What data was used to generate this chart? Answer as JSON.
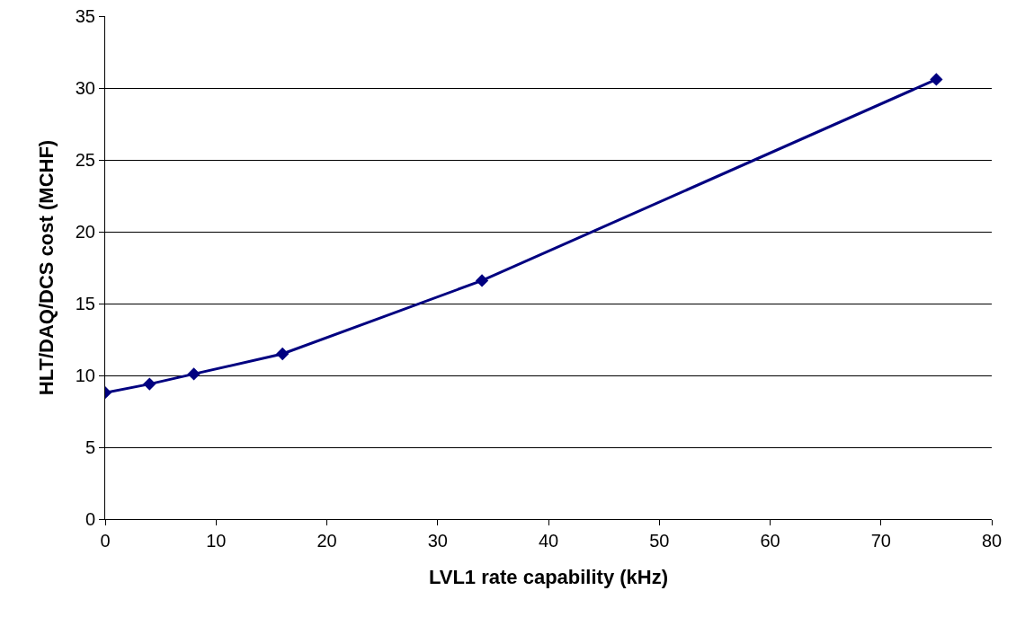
{
  "chart_data": {
    "type": "line",
    "xlabel": "LVL1 rate capability (kHz)",
    "ylabel": "HLT/DAQ/DCS cost (MCHF)",
    "x": [
      0,
      4,
      8,
      16,
      34,
      75
    ],
    "series": [
      {
        "color": "#000080",
        "values": [
          8.8,
          9.4,
          10.1,
          11.5,
          16.6,
          30.6
        ]
      }
    ],
    "xlim": [
      0,
      80
    ],
    "xticks": [
      0,
      10,
      20,
      30,
      40,
      50,
      60,
      70,
      80
    ],
    "ylim": [
      0,
      35
    ],
    "yticks": [
      0,
      5,
      10,
      15,
      20,
      25,
      30,
      35
    ],
    "grid": "y",
    "legend": false,
    "marker": "diamond",
    "line_style": "solid"
  }
}
